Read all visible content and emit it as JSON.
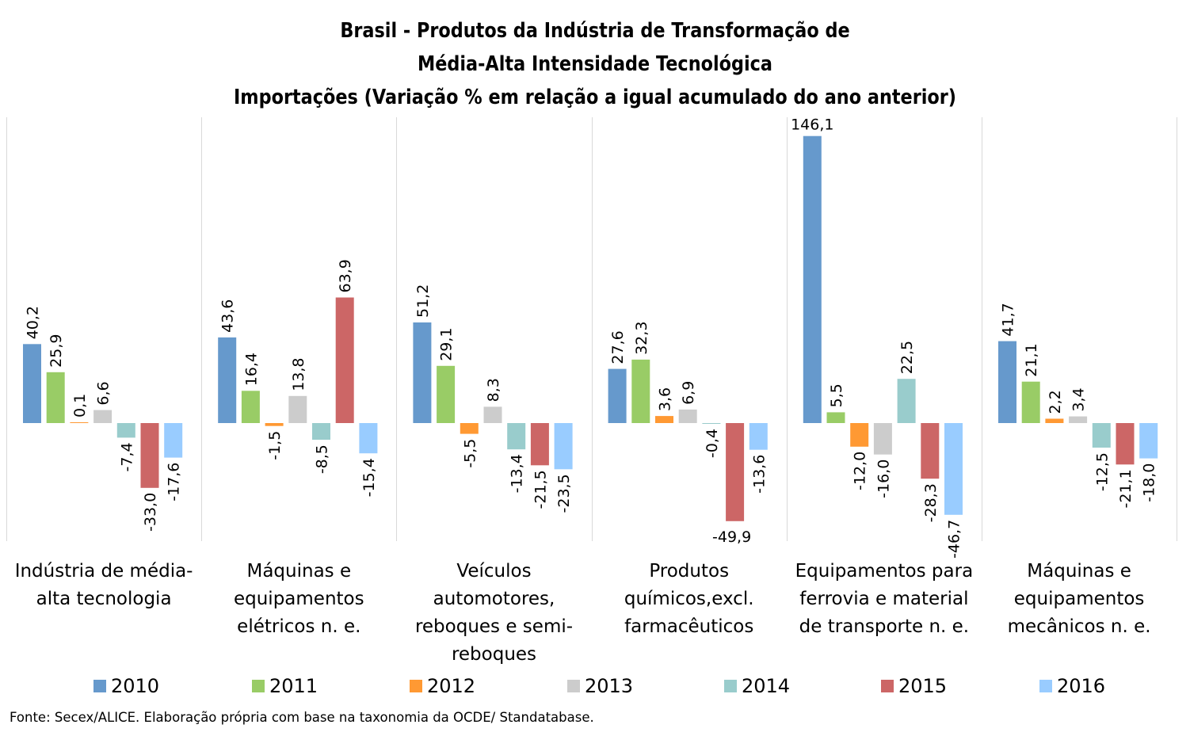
{
  "title_lines": [
    "Brasil - Produtos da Indústria de Transformação de",
    "Média-Alta Intensidade Tecnológica",
    "Importações (Variação % em relação a igual acumulado do ano anterior)"
  ],
  "source": "Fonte: Secex/ALICE. Elaboração própria com base na taxonomia da OCDE/ Standatabase.",
  "chart_data": {
    "type": "bar",
    "title": "Brasil - Produtos da Indústria de Transformação de Média-Alta Intensidade Tecnológica Importações (Variação % em relação a igual acumulado do ano anterior)",
    "categories": [
      [
        "Indústria de média-",
        "alta tecnologia"
      ],
      [
        "Máquinas e",
        "equipamentos",
        "elétricos n. e."
      ],
      [
        "Veículos",
        "automotores,",
        "reboques e semi-",
        "reboques"
      ],
      [
        "Produtos",
        "químicos,excl.",
        "farmacêuticos"
      ],
      [
        "Equipamentos para",
        "ferrovia e material",
        "de transporte n. e."
      ],
      [
        "Máquinas e",
        "equipamentos",
        "mecânicos  n. e."
      ]
    ],
    "series": [
      {
        "name": "2010",
        "color": "#6699CC",
        "values": [
          40.2,
          43.6,
          51.2,
          27.6,
          146.1,
          41.7
        ],
        "labels": [
          "40,2",
          "43,6",
          "51,2",
          "27,6",
          "146,1",
          "41,7"
        ]
      },
      {
        "name": "2011",
        "color": "#99CC66",
        "values": [
          25.9,
          16.4,
          29.1,
          32.3,
          5.5,
          21.1
        ],
        "labels": [
          "25,9",
          "16,4",
          "29,1",
          "32,3",
          "5,5",
          "21,1"
        ]
      },
      {
        "name": "2012",
        "color": "#FF9933",
        "values": [
          0.1,
          -1.5,
          -5.5,
          3.6,
          -12.0,
          2.2
        ],
        "labels": [
          "0,1",
          "-1,5",
          "-5,5",
          "3,6",
          "-12,0",
          "2,2"
        ]
      },
      {
        "name": "2013",
        "color": "#CCCCCC",
        "values": [
          6.6,
          13.8,
          8.3,
          6.9,
          -16.0,
          3.4
        ],
        "labels": [
          "6,6",
          "13,8",
          "8,3",
          "6,9",
          "-16,0",
          "3,4"
        ]
      },
      {
        "name": "2014",
        "color": "#99CCCC",
        "values": [
          -7.4,
          -8.5,
          -13.4,
          -0.4,
          22.5,
          -12.5
        ],
        "labels": [
          "-7,4",
          "-8,5",
          "-13,4",
          "-0,4",
          "22,5",
          "-12,5"
        ]
      },
      {
        "name": "2015",
        "color": "#CC6666",
        "values": [
          -33.0,
          63.9,
          -21.5,
          -49.9,
          -28.3,
          -21.1
        ],
        "labels": [
          "-33,0",
          "63,9",
          "-21,5",
          "-49,9",
          "-28,3",
          "-21,1"
        ]
      },
      {
        "name": "2016",
        "color": "#99CCFF",
        "values": [
          -17.6,
          -15.4,
          -23.5,
          -13.6,
          -46.7,
          -18.0
        ],
        "labels": [
          "-17,6",
          "-15,4",
          "-23,5",
          "-13,6",
          "-46,7",
          "-18,0"
        ]
      }
    ],
    "ylim": [
      -60,
      160
    ],
    "grid": false,
    "legend_position": "bottom"
  }
}
